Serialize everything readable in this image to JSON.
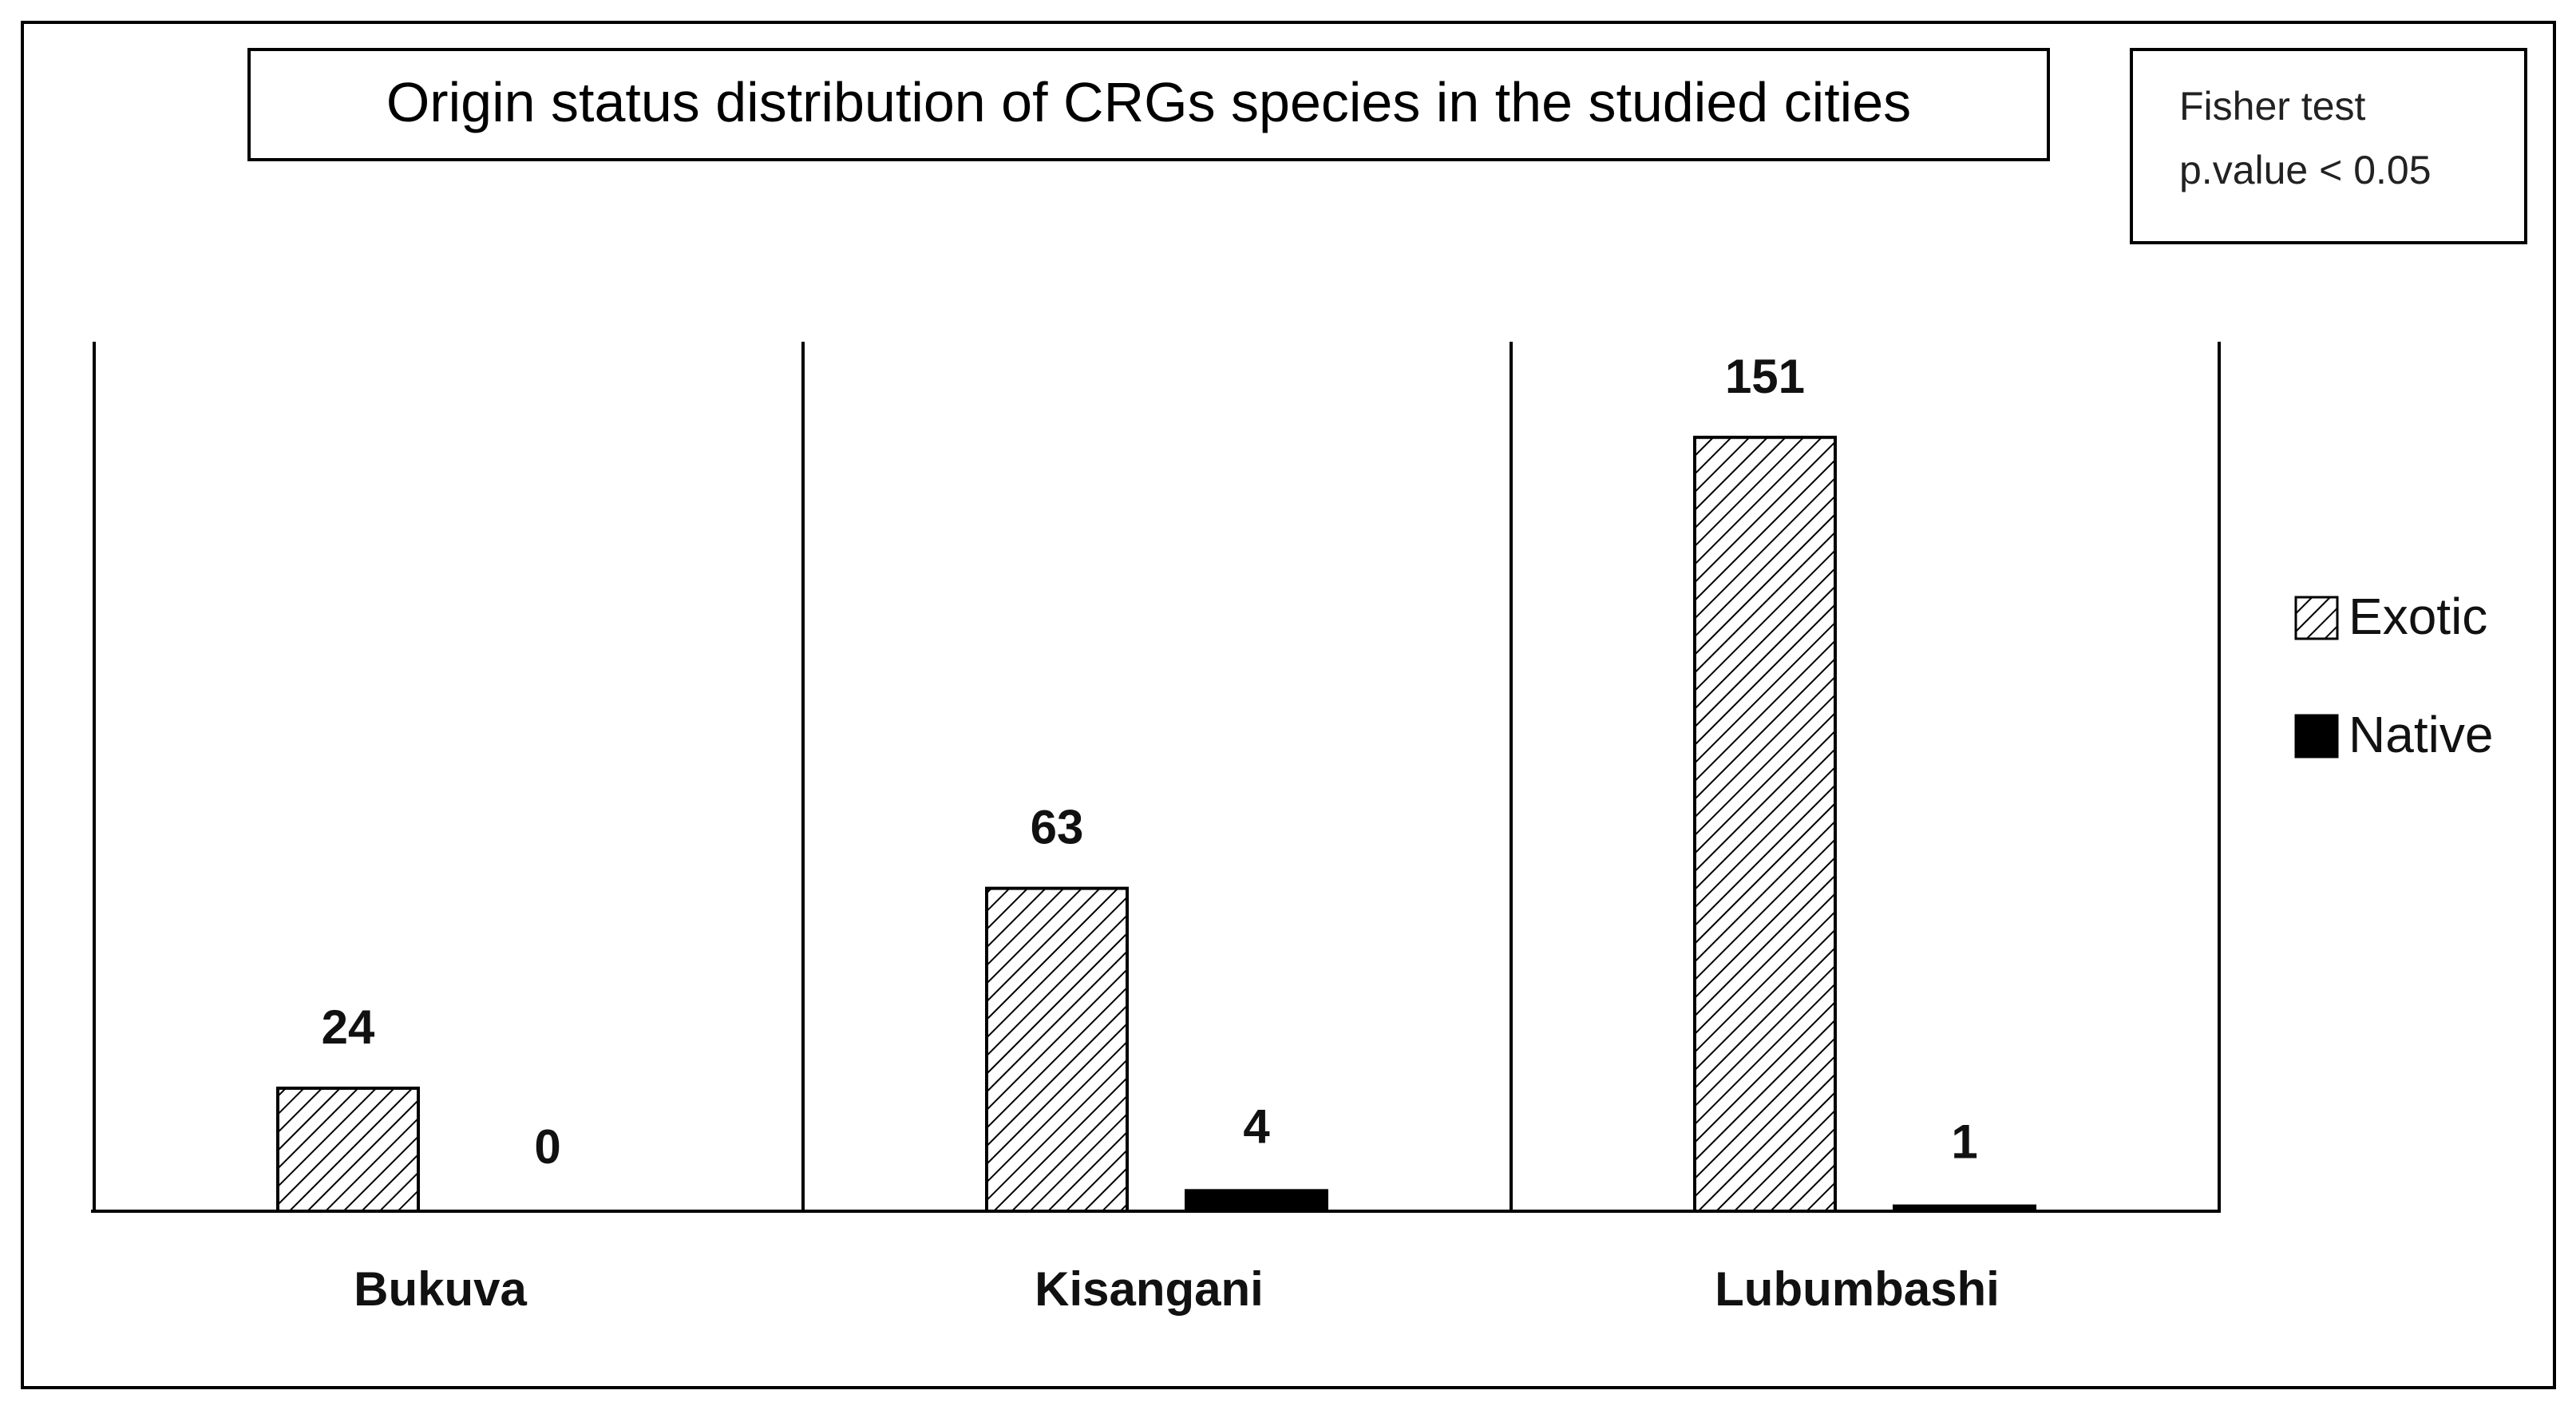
{
  "chart_data": {
    "type": "bar",
    "title": "Origin status distribution of CRGs species in the studied cities",
    "annotation": [
      "Fisher test",
      "p.value < 0.05"
    ],
    "categories": [
      "Bukuva",
      "Kisangani",
      "Lubumbashi"
    ],
    "series": [
      {
        "name": "Exotic",
        "values": [
          24,
          63,
          151
        ],
        "fill": "hatched"
      },
      {
        "name": "Native",
        "values": [
          0,
          4,
          1
        ],
        "fill": "#000000"
      }
    ],
    "xlabel": "",
    "ylabel": "",
    "ylim": [
      0,
      160
    ],
    "grid": false,
    "legend_position": "right",
    "data_labels": true
  }
}
